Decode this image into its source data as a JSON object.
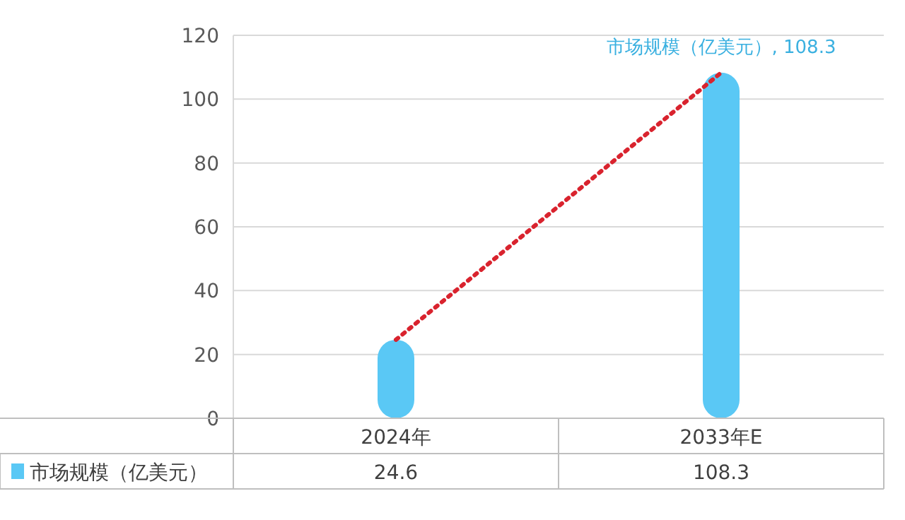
{
  "chart_data": {
    "type": "bar",
    "categories": [
      "2024年",
      "2033年E"
    ],
    "series": [
      {
        "name": "市场规模（亿美元）",
        "color": "#5ac8f5",
        "values": [
          24.6,
          108.3
        ],
        "value_labels": [
          "24.6",
          "108.3"
        ]
      },
      {
        "type": "line",
        "color": "#d9232e",
        "line_style": "dotted",
        "values": [
          24.6,
          108.3
        ]
      }
    ],
    "ylim": [
      0,
      120
    ],
    "yticks": [
      0,
      20,
      40,
      60,
      80,
      100,
      120
    ],
    "grid": "y",
    "legend": "bottom",
    "annotations": [
      {
        "text": "市场规模（亿美元）, 108.3",
        "x": "2033年E",
        "y": 108.3
      }
    ]
  }
}
